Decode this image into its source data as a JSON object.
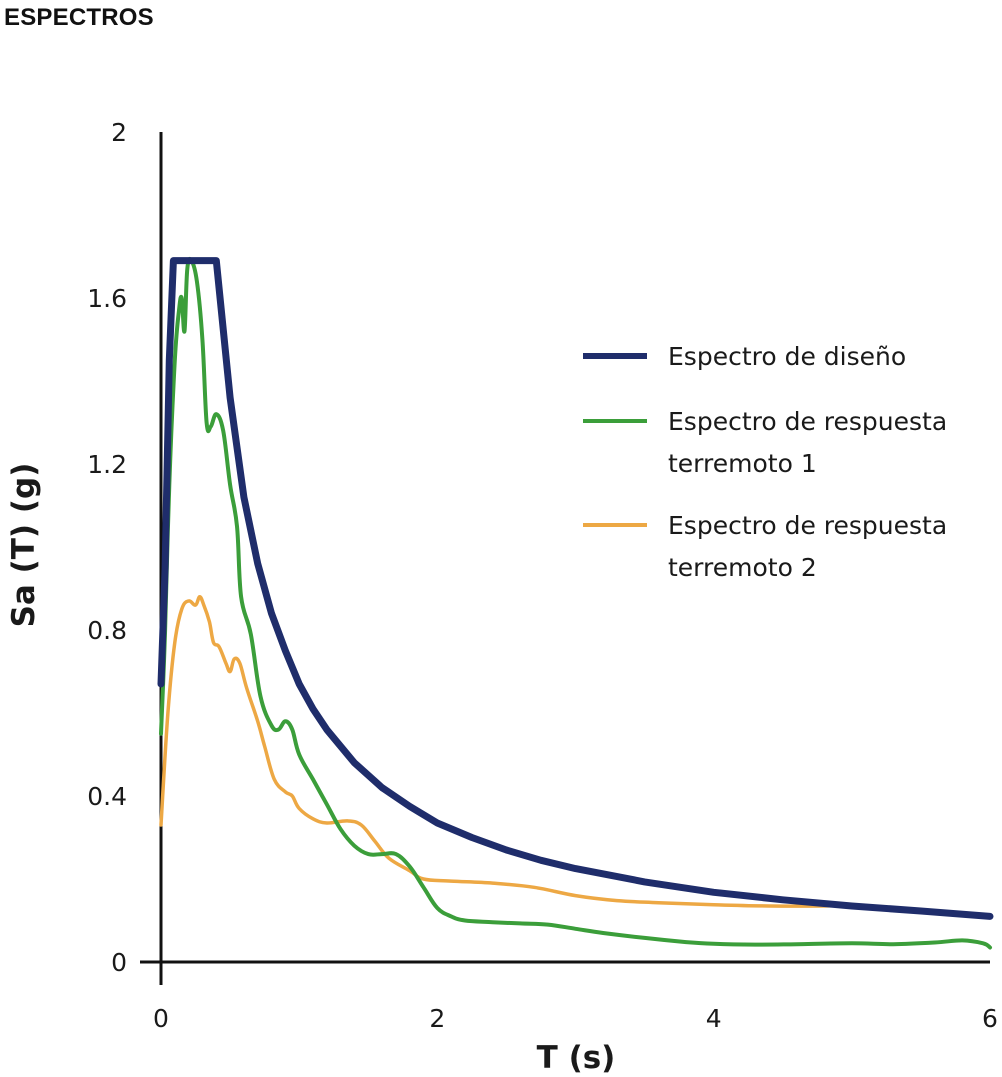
{
  "page": {
    "title": "ESPECTROS"
  },
  "chart_data": {
    "type": "line",
    "xlabel": "T (s)",
    "ylabel": "Sa (T) (g)",
    "xlim": [
      0,
      6
    ],
    "ylim": [
      0,
      2
    ],
    "x_ticks": [
      0,
      2,
      4,
      6
    ],
    "x_tick_labels": [
      "0",
      "2",
      "4",
      "6"
    ],
    "y_ticks": [
      0,
      0.4,
      0.8,
      1.2,
      1.6,
      2
    ],
    "y_tick_labels": [
      "0",
      "0.4",
      "0.8",
      "1.2",
      "1.6",
      "2"
    ],
    "grid": false,
    "legend_position": "right",
    "series": [
      {
        "name": "Espectro de diseño",
        "legend_lines": [
          "Espectro de diseño"
        ],
        "color": "#1f2d6b",
        "points": [
          [
            0,
            0.67
          ],
          [
            0.03,
            0.95
          ],
          [
            0.06,
            1.45
          ],
          [
            0.09,
            1.69
          ],
          [
            0.17,
            1.69
          ],
          [
            0.26,
            1.69
          ],
          [
            0.4,
            1.69
          ],
          [
            0.5,
            1.36
          ],
          [
            0.6,
            1.12
          ],
          [
            0.7,
            0.96
          ],
          [
            0.8,
            0.84
          ],
          [
            0.9,
            0.75
          ],
          [
            1.0,
            0.67
          ],
          [
            1.1,
            0.61
          ],
          [
            1.2,
            0.56
          ],
          [
            1.4,
            0.48
          ],
          [
            1.6,
            0.42
          ],
          [
            1.8,
            0.375
          ],
          [
            2.0,
            0.335
          ],
          [
            2.25,
            0.3
          ],
          [
            2.5,
            0.27
          ],
          [
            2.75,
            0.245
          ],
          [
            3.0,
            0.225
          ],
          [
            3.5,
            0.193
          ],
          [
            4.0,
            0.168
          ],
          [
            4.5,
            0.15
          ],
          [
            5.0,
            0.135
          ],
          [
            5.5,
            0.123
          ],
          [
            6.0,
            0.11
          ]
        ]
      },
      {
        "name": "Espectro de respuesta terremoto 1",
        "legend_lines": [
          "Espectro de respuesta",
          "terremoto 1"
        ],
        "color": "#3b9e3a",
        "points": [
          [
            0,
            0.55
          ],
          [
            0.03,
            0.8
          ],
          [
            0.06,
            1.15
          ],
          [
            0.1,
            1.45
          ],
          [
            0.13,
            1.57
          ],
          [
            0.15,
            1.6
          ],
          [
            0.17,
            1.52
          ],
          [
            0.19,
            1.67
          ],
          [
            0.22,
            1.69
          ],
          [
            0.26,
            1.64
          ],
          [
            0.3,
            1.5
          ],
          [
            0.33,
            1.3
          ],
          [
            0.36,
            1.29
          ],
          [
            0.4,
            1.32
          ],
          [
            0.45,
            1.28
          ],
          [
            0.5,
            1.15
          ],
          [
            0.55,
            1.05
          ],
          [
            0.58,
            0.88
          ],
          [
            0.65,
            0.79
          ],
          [
            0.72,
            0.64
          ],
          [
            0.8,
            0.57
          ],
          [
            0.85,
            0.56
          ],
          [
            0.9,
            0.58
          ],
          [
            0.95,
            0.56
          ],
          [
            1.0,
            0.5
          ],
          [
            1.1,
            0.44
          ],
          [
            1.2,
            0.38
          ],
          [
            1.3,
            0.32
          ],
          [
            1.4,
            0.28
          ],
          [
            1.5,
            0.26
          ],
          [
            1.6,
            0.26
          ],
          [
            1.7,
            0.26
          ],
          [
            1.8,
            0.23
          ],
          [
            1.9,
            0.18
          ],
          [
            2.0,
            0.13
          ],
          [
            2.1,
            0.11
          ],
          [
            2.2,
            0.1
          ],
          [
            2.4,
            0.096
          ],
          [
            2.6,
            0.093
          ],
          [
            2.8,
            0.09
          ],
          [
            3.0,
            0.08
          ],
          [
            3.2,
            0.07
          ],
          [
            3.5,
            0.058
          ],
          [
            3.8,
            0.048
          ],
          [
            4.0,
            0.044
          ],
          [
            4.3,
            0.042
          ],
          [
            4.6,
            0.043
          ],
          [
            5.0,
            0.045
          ],
          [
            5.3,
            0.043
          ],
          [
            5.6,
            0.047
          ],
          [
            5.8,
            0.052
          ],
          [
            5.95,
            0.045
          ],
          [
            6.0,
            0.035
          ]
        ]
      },
      {
        "name": "Espectro de respuesta terremoto 2",
        "legend_lines": [
          "Espectro de respuesta",
          "terremoto 2"
        ],
        "color": "#eda844",
        "points": [
          [
            0,
            0.33
          ],
          [
            0.05,
            0.6
          ],
          [
            0.1,
            0.77
          ],
          [
            0.15,
            0.85
          ],
          [
            0.2,
            0.87
          ],
          [
            0.25,
            0.86
          ],
          [
            0.28,
            0.88
          ],
          [
            0.31,
            0.86
          ],
          [
            0.35,
            0.82
          ],
          [
            0.38,
            0.77
          ],
          [
            0.42,
            0.76
          ],
          [
            0.47,
            0.72
          ],
          [
            0.5,
            0.7
          ],
          [
            0.53,
            0.73
          ],
          [
            0.57,
            0.72
          ],
          [
            0.62,
            0.66
          ],
          [
            0.7,
            0.58
          ],
          [
            0.75,
            0.52
          ],
          [
            0.82,
            0.44
          ],
          [
            0.9,
            0.41
          ],
          [
            0.95,
            0.4
          ],
          [
            1.0,
            0.37
          ],
          [
            1.1,
            0.345
          ],
          [
            1.2,
            0.335
          ],
          [
            1.35,
            0.34
          ],
          [
            1.45,
            0.33
          ],
          [
            1.55,
            0.29
          ],
          [
            1.65,
            0.25
          ],
          [
            1.8,
            0.22
          ],
          [
            1.9,
            0.2
          ],
          [
            2.1,
            0.195
          ],
          [
            2.4,
            0.19
          ],
          [
            2.7,
            0.18
          ],
          [
            3.0,
            0.16
          ],
          [
            3.3,
            0.148
          ],
          [
            3.6,
            0.143
          ],
          [
            4.0,
            0.138
          ],
          [
            4.4,
            0.135
          ],
          [
            4.8,
            0.135
          ],
          [
            4.9,
            0.137
          ]
        ]
      }
    ]
  }
}
